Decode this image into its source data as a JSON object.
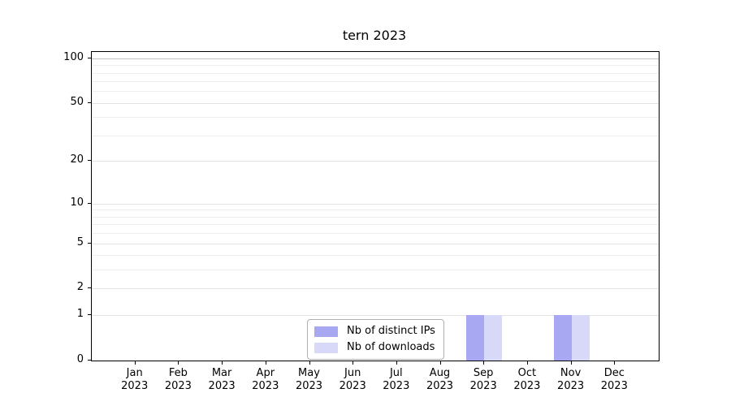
{
  "chart_data": {
    "type": "bar",
    "title": "tern 2023",
    "categories": [
      "Jan 2023",
      "Feb 2023",
      "Mar 2023",
      "Apr 2023",
      "May 2023",
      "Jun 2023",
      "Jul 2023",
      "Aug 2023",
      "Sep 2023",
      "Oct 2023",
      "Nov 2023",
      "Dec 2023"
    ],
    "x_months": [
      "Jan",
      "Feb",
      "Mar",
      "Apr",
      "May",
      "Jun",
      "Jul",
      "Aug",
      "Sep",
      "Oct",
      "Nov",
      "Dec"
    ],
    "x_year": "2023",
    "series": [
      {
        "name": "Nb of distinct IPs",
        "color": "#a8a8f2",
        "values": [
          0,
          0,
          0,
          0,
          0,
          0,
          0,
          0,
          1,
          0,
          1,
          0
        ]
      },
      {
        "name": "Nb of downloads",
        "color": "#d8d8f9",
        "values": [
          0,
          0,
          0,
          0,
          0,
          0,
          0,
          0,
          1,
          0,
          1,
          0
        ]
      }
    ],
    "yscale": "log1p",
    "yticks": [
      0,
      1,
      2,
      5,
      10,
      20,
      50,
      100
    ],
    "minor_yticks": [
      3,
      4,
      6,
      7,
      8,
      9,
      30,
      40,
      60,
      70,
      80,
      90
    ],
    "ylim": [
      0,
      110
    ],
    "grid": "horizontal",
    "legend_position": "bottom-center",
    "colors": {
      "axis": "#000000",
      "major_grid": "#e2e2e2",
      "minor_grid": "#efefef",
      "top_grid": "#c4c4c4",
      "legend_border": "#b0b0b0"
    }
  }
}
